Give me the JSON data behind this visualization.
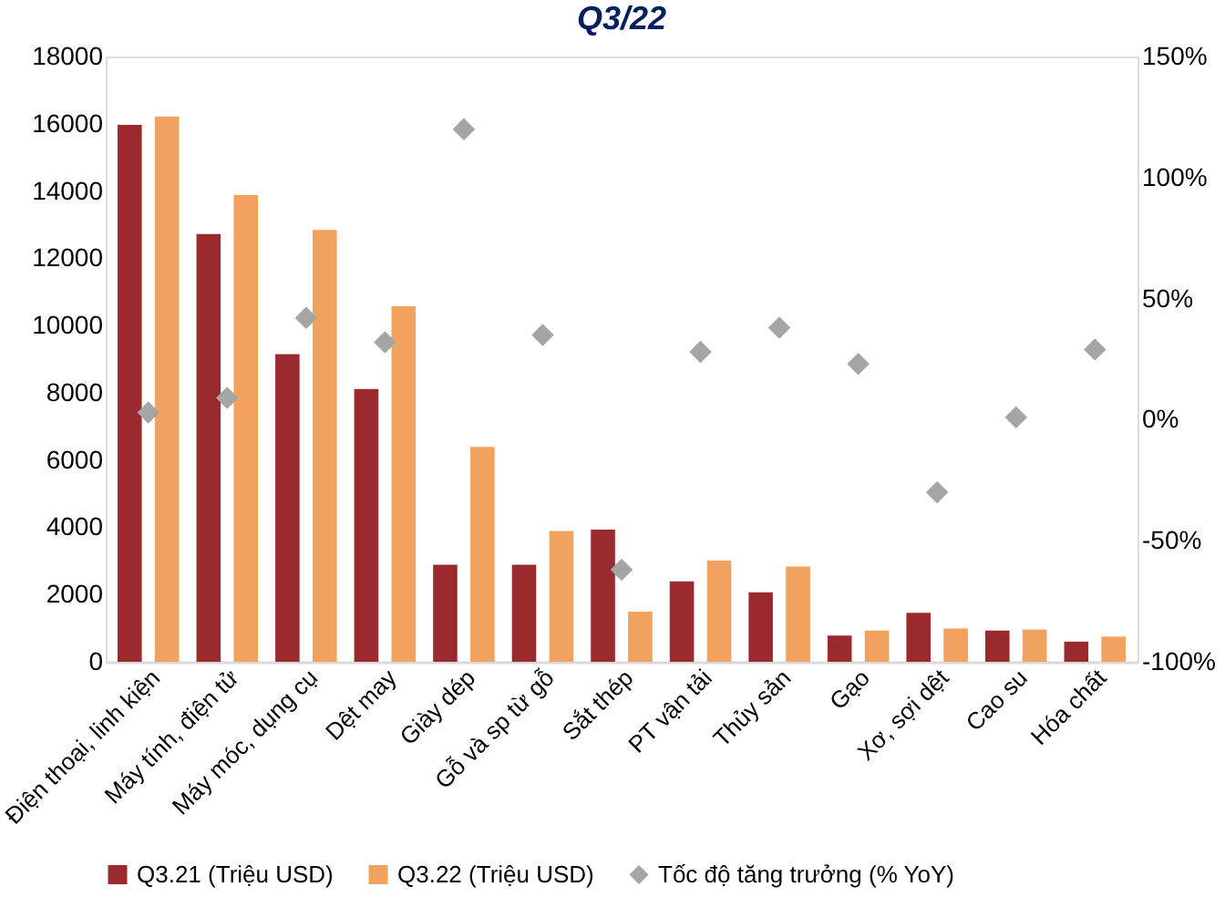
{
  "chart_data": {
    "type": "bar",
    "title": "Q3/22",
    "categories": [
      "Điện thoại, linh kiện",
      "Máy tính, điện tử",
      "Máy móc, dụng cụ",
      "Dệt may",
      "Giày dép",
      "Gỗ và sp từ gỗ",
      "Sắt thép",
      "PT vận tải",
      "Thủy sản",
      "Gạo",
      "Xơ, sợi dệt",
      "Cao su",
      "Hóa chất"
    ],
    "series": [
      {
        "name": "Q3.21 (Triệu USD)",
        "color": "#9b2a2e",
        "values": [
          15970,
          12720,
          9150,
          8110,
          2890,
          2890,
          3930,
          2390,
          2070,
          780,
          1460,
          930,
          600
        ]
      },
      {
        "name": "Q3.22 (Triệu USD)",
        "color": "#f0a25e",
        "values": [
          16220,
          13880,
          12840,
          10570,
          6390,
          3890,
          1490,
          3010,
          2830,
          930,
          990,
          960,
          750
        ]
      },
      {
        "name": "Tốc độ tăng trưởng (% YoY)",
        "type": "scatter",
        "axis": "y2",
        "marker": "diamond",
        "color": "#a5a5a5",
        "values": [
          3,
          9,
          42,
          32,
          120,
          35,
          -62,
          28,
          38,
          23,
          -30,
          1,
          29
        ]
      }
    ],
    "ylim": [
      0,
      18000
    ],
    "yticks": [
      0,
      2000,
      4000,
      6000,
      8000,
      10000,
      12000,
      14000,
      16000,
      18000
    ],
    "y2lim": [
      -100,
      150
    ],
    "y2ticks": [
      {
        "value": -100,
        "label": "-100%"
      },
      {
        "value": -50,
        "label": "-50%"
      },
      {
        "value": 0,
        "label": "0%"
      },
      {
        "value": 50,
        "label": "50%"
      },
      {
        "value": 100,
        "label": "100%"
      },
      {
        "value": 150,
        "label": "150%"
      }
    ],
    "grid": false,
    "legend": "bottom"
  }
}
